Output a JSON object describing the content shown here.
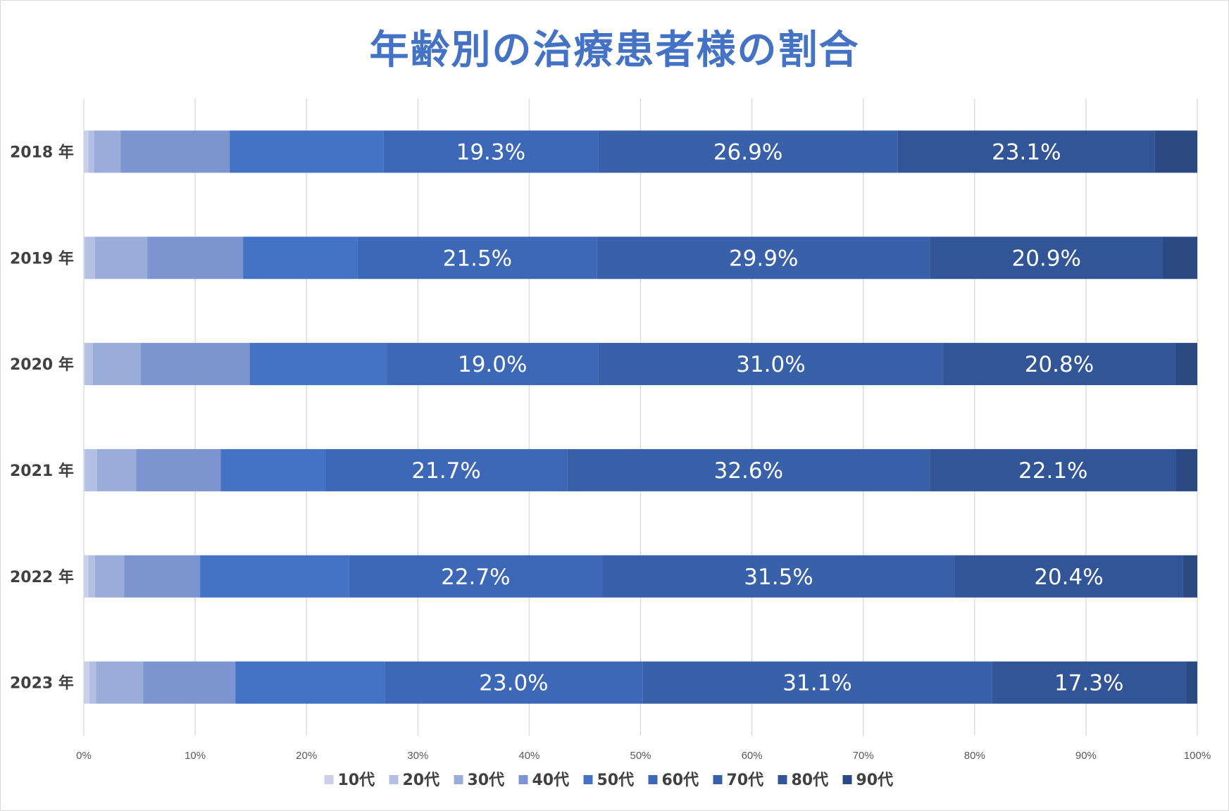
{
  "chart_data": {
    "type": "bar",
    "orientation": "horizontal",
    "stacked": "percent",
    "title": "年齢別の治療患者様の割合",
    "xlabel": "",
    "ylabel": "",
    "xlim": [
      0,
      100
    ],
    "x_ticks": [
      "0%",
      "10%",
      "20%",
      "30%",
      "40%",
      "50%",
      "60%",
      "70%",
      "80%",
      "90%",
      "100%"
    ],
    "categories": [
      "2018 年",
      "2019 年",
      "2020 年",
      "2021 年",
      "2022 年",
      "2023 年"
    ],
    "grid": true,
    "legend_position": "bottom",
    "series": [
      {
        "name": "10代",
        "color": "#c9d1ea",
        "values": [
          0.4,
          0.1,
          0.1,
          0.1,
          0.4,
          0.5
        ]
      },
      {
        "name": "20代",
        "color": "#b4c0e3",
        "values": [
          0.5,
          0.9,
          0.7,
          1.1,
          0.6,
          0.6
        ]
      },
      {
        "name": "30代",
        "color": "#9aadda",
        "values": [
          2.4,
          4.7,
          4.3,
          3.5,
          2.6,
          4.2
        ]
      },
      {
        "name": "40代",
        "color": "#7c95d0",
        "values": [
          9.8,
          8.6,
          9.8,
          7.6,
          6.8,
          8.2
        ]
      },
      {
        "name": "50代",
        "color": "#4472c4",
        "values": [
          13.8,
          10.3,
          12.3,
          9.4,
          13.3,
          13.3
        ]
      },
      {
        "name": "60代",
        "color": "#3d68b8",
        "values": [
          19.3,
          21.5,
          19.0,
          21.7,
          22.7,
          23.0
        ]
      },
      {
        "name": "70代",
        "color": "#3861a9",
        "values": [
          26.9,
          29.9,
          31.0,
          32.6,
          31.5,
          31.1
        ]
      },
      {
        "name": "80代",
        "color": "#315597",
        "values": [
          23.1,
          20.9,
          20.8,
          22.1,
          20.4,
          17.3
        ]
      },
      {
        "name": "90代",
        "color": "#2b4a84",
        "values": [
          3.8,
          3.1,
          2.0,
          1.9,
          1.3,
          1.0
        ]
      }
    ],
    "data_labels": [
      {
        "series": "60代",
        "labels": [
          "19.3%",
          "21.5%",
          "19.0%",
          "21.7%",
          "22.7%",
          "23.0%"
        ]
      },
      {
        "series": "70代",
        "labels": [
          "26.9%",
          "29.9%",
          "31.0%",
          "32.6%",
          "31.5%",
          "31.1%"
        ]
      },
      {
        "series": "80代",
        "labels": [
          "23.1%",
          "20.9%",
          "20.8%",
          "22.1%",
          "20.4%",
          "17.3%"
        ]
      }
    ]
  }
}
